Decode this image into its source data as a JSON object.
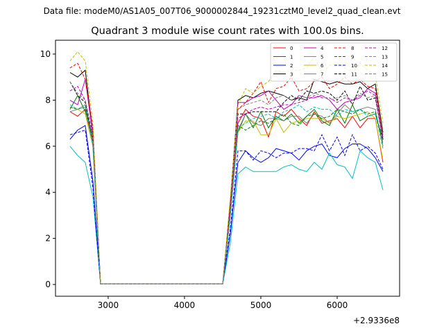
{
  "chart_data": {
    "type": "line",
    "suptitle": "Data file: modeM0/AS1A05_007T06_9000002844_19231cztM0_level2_quad_clean.evt",
    "title": "Quadrant 3 module wise count rates with 100.0s bins.",
    "xlabel": "",
    "ylabel": "",
    "x_offset_label": "+2.9336e8",
    "xlim": [
      2310,
      6818
    ],
    "ylim": [
      -0.51,
      10.6
    ],
    "xticks": [
      3000,
      4000,
      5000,
      6000
    ],
    "yticks": [
      0,
      2,
      4,
      6,
      8,
      10
    ],
    "legend_position": "top-right",
    "x_start": 2500,
    "x_step": 100,
    "series": [
      {
        "name": "0",
        "color": "#ff0000",
        "dash": false,
        "left": [
          7.5,
          7.3,
          7.6,
          6.0
        ],
        "rise": 3.2,
        "right": [
          7.0,
          7.6,
          7.3,
          7.2,
          6.4,
          7.5,
          7.3,
          7.6,
          7.2,
          6.9,
          7.5,
          7.0,
          7.1,
          7.2,
          6.8,
          7.3,
          6.8,
          7.2,
          7.2,
          5.3
        ]
      },
      {
        "name": "1",
        "color": "#008000",
        "dash": false,
        "left": [
          7.6,
          8.2,
          7.5,
          6.5
        ],
        "rise": 3.0,
        "right": [
          6.6,
          7.4,
          6.8,
          7.5,
          6.8,
          7.3,
          7.1,
          7.4,
          7.0,
          7.3,
          7.6,
          7.1,
          6.9,
          7.6,
          7.0,
          7.8,
          7.1,
          7.3,
          7.4,
          6.3
        ]
      },
      {
        "name": "2",
        "color": "#0000ff",
        "dash": false,
        "left": [
          6.3,
          6.7,
          6.9,
          4.5
        ],
        "rise": 2.2,
        "right": [
          5.3,
          5.8,
          5.5,
          5.3,
          5.5,
          5.9,
          5.8,
          5.7,
          5.4,
          5.8,
          6.0,
          6.1,
          5.6,
          5.5,
          5.9,
          6.1,
          6.1,
          5.9,
          5.5,
          4.9
        ]
      },
      {
        "name": "3",
        "color": "#000000",
        "dash": false,
        "left": [
          9.2,
          9.0,
          9.3,
          6.5
        ],
        "rise": 3.6,
        "right": [
          8.0,
          8.2,
          8.1,
          8.3,
          8.4,
          8.3,
          8.2,
          8.0,
          8.1,
          8.0,
          8.9,
          8.8,
          8.7,
          8.8,
          8.7,
          8.7,
          8.8,
          8.5,
          8.7,
          6.6
        ]
      },
      {
        "name": "4",
        "color": "#bf00bf",
        "dash": false,
        "left": [
          8.0,
          7.8,
          8.9,
          6.5
        ],
        "rise": 3.4,
        "right": [
          7.9,
          7.9,
          8.1,
          8.2,
          8.4,
          8.0,
          7.6,
          7.8,
          8.2,
          8.1,
          8.1,
          8.2,
          8.0,
          7.6,
          7.9,
          8.0,
          8.1,
          8.5,
          8.3,
          6.4
        ]
      },
      {
        "name": "5",
        "color": "#00bfbf",
        "dash": false,
        "left": [
          6.0,
          5.6,
          5.3,
          3.8
        ],
        "rise": 1.8,
        "right": [
          4.8,
          5.1,
          4.9,
          4.9,
          4.9,
          4.9,
          5.1,
          5.2,
          5.0,
          4.9,
          5.3,
          5.0,
          5.7,
          5.2,
          5.1,
          4.6,
          5.8,
          5.5,
          5.3,
          4.1
        ]
      },
      {
        "name": "6",
        "color": "#bfbf00",
        "dash": false,
        "left": [
          7.7,
          7.6,
          7.4,
          6.0
        ],
        "rise": 3.0,
        "right": [
          6.6,
          7.1,
          7.1,
          6.5,
          6.5,
          7.2,
          6.6,
          7.0,
          7.1,
          7.2,
          7.2,
          7.2,
          7.0,
          7.3,
          7.2,
          7.3,
          7.4,
          7.5,
          7.2,
          5.4
        ]
      },
      {
        "name": "7",
        "color": "#7f7f7f",
        "dash": false,
        "left": [
          7.5,
          7.6,
          7.8,
          6.2
        ],
        "rise": 3.0,
        "right": [
          6.7,
          7.4,
          7.0,
          6.9,
          7.2,
          7.2,
          7.1,
          7.3,
          7.3,
          7.0,
          7.4,
          7.3,
          7.0,
          7.4,
          7.8,
          7.5,
          7.6,
          7.7,
          7.6,
          6.0
        ]
      },
      {
        "name": "8",
        "color": "#ff0000",
        "dash": true,
        "left": [
          9.4,
          9.6,
          8.9,
          6.8
        ],
        "rise": 3.6,
        "right": [
          7.6,
          7.9,
          8.3,
          8.8,
          7.9,
          8.5,
          8.6,
          9.0,
          8.4,
          8.5,
          8.8,
          9.0,
          8.5,
          8.7,
          9.0,
          8.7,
          8.9,
          8.6,
          8.5,
          6.5
        ]
      },
      {
        "name": "9",
        "color": "#008000",
        "dash": true,
        "left": [
          7.7,
          7.6,
          7.7,
          6.3
        ],
        "rise": 3.0,
        "right": [
          6.9,
          6.7,
          6.9,
          7.1,
          7.0,
          7.2,
          7.4,
          7.0,
          6.9,
          7.3,
          7.4,
          7.2,
          7.3,
          7.6,
          7.5,
          7.4,
          7.6,
          7.4,
          7.5,
          6.1
        ]
      },
      {
        "name": "10",
        "color": "#0000ff",
        "dash": true,
        "left": [
          6.5,
          6.6,
          6.7,
          4.2
        ],
        "rise": 2.4,
        "right": [
          5.8,
          5.8,
          5.4,
          5.8,
          5.7,
          5.5,
          5.7,
          5.7,
          5.9,
          5.9,
          5.8,
          6.5,
          5.8,
          6.4,
          5.6,
          6.5,
          5.8,
          6.0,
          5.7,
          5.0
        ]
      },
      {
        "name": "11",
        "color": "#000000",
        "dash": true,
        "left": [
          8.8,
          8.2,
          7.9,
          6.2
        ],
        "rise": 3.2,
        "right": [
          7.4,
          7.4,
          7.5,
          7.5,
          7.5,
          7.5,
          7.9,
          8.2,
          8.0,
          8.4,
          8.3,
          8.4,
          8.3,
          8.0,
          8.4,
          7.8,
          8.6,
          8.0,
          8.1,
          6.3
        ]
      },
      {
        "name": "12",
        "color": "#bf00bf",
        "dash": true,
        "left": [
          8.4,
          8.6,
          8.0,
          6.5
        ],
        "rise": 3.2,
        "right": [
          7.2,
          7.4,
          7.6,
          7.7,
          7.6,
          7.7,
          7.8,
          7.8,
          7.9,
          8.0,
          8.2,
          8.1,
          8.1,
          7.9,
          8.1,
          8.0,
          8.2,
          8.4,
          8.2,
          6.2
        ]
      },
      {
        "name": "13",
        "color": "#00bfbf",
        "dash": true,
        "left": [
          7.8,
          7.6,
          7.7,
          6.0
        ],
        "rise": 3.0,
        "right": [
          6.8,
          7.0,
          7.2,
          7.3,
          7.4,
          7.2,
          7.5,
          7.6,
          7.8,
          7.5,
          7.7,
          7.6,
          7.6,
          7.3,
          7.6,
          7.5,
          7.6,
          7.3,
          7.4,
          5.9
        ]
      },
      {
        "name": "14",
        "color": "#bfbf00",
        "dash": true,
        "left": [
          9.7,
          10.1,
          9.7,
          7.0
        ],
        "rise": 3.8,
        "right": [
          7.8,
          8.5,
          8.3,
          8.6,
          8.8,
          9.3,
          9.2,
          9.3,
          9.3,
          9.4,
          9.9,
          9.2,
          9.5,
          9.6,
          9.4,
          9.2,
          9.6,
          9.3,
          9.1,
          7.0
        ]
      },
      {
        "name": "15",
        "color": "#7f7f7f",
        "dash": true,
        "left": [
          8.8,
          8.3,
          8.0,
          6.3
        ],
        "rise": 3.2,
        "right": [
          7.6,
          7.8,
          7.9,
          8.0,
          7.8,
          8.1,
          8.2,
          8.0,
          8.2,
          8.1,
          8.3,
          8.2,
          8.0,
          8.1,
          8.2,
          8.0,
          8.3,
          8.1,
          8.2,
          6.5
        ]
      }
    ]
  }
}
